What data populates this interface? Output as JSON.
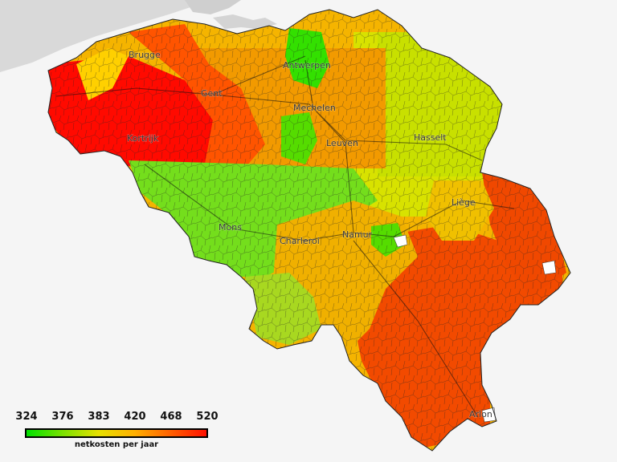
{
  "map": {
    "background_color": "#f5f5f5",
    "neighbor_land_color": "#d9d9d9",
    "border_color": "#333333",
    "cities": [
      {
        "id": "brugge",
        "name": "Brugge"
      },
      {
        "id": "antwerpen",
        "name": "Antwerpen"
      },
      {
        "id": "gent",
        "name": "Gent"
      },
      {
        "id": "mechelen",
        "name": "Mechelen"
      },
      {
        "id": "kortrijk",
        "name": "Kortrijk"
      },
      {
        "id": "leuven",
        "name": "Leuven"
      },
      {
        "id": "hasselt",
        "name": "Hasselt"
      },
      {
        "id": "liege",
        "name": "Liège"
      },
      {
        "id": "mons",
        "name": "Mons"
      },
      {
        "id": "charleroi",
        "name": "Charleroi"
      },
      {
        "id": "namur",
        "name": "Namur"
      },
      {
        "id": "arlon",
        "name": "Arlon"
      }
    ]
  },
  "legend": {
    "ticks": [
      "324",
      "376",
      "383",
      "420",
      "468",
      "520"
    ],
    "caption": "netkosten per jaar",
    "colors": [
      "#00e000",
      "#7ae000",
      "#e6e000",
      "#ffb000",
      "#ff6000",
      "#ff1000"
    ]
  }
}
